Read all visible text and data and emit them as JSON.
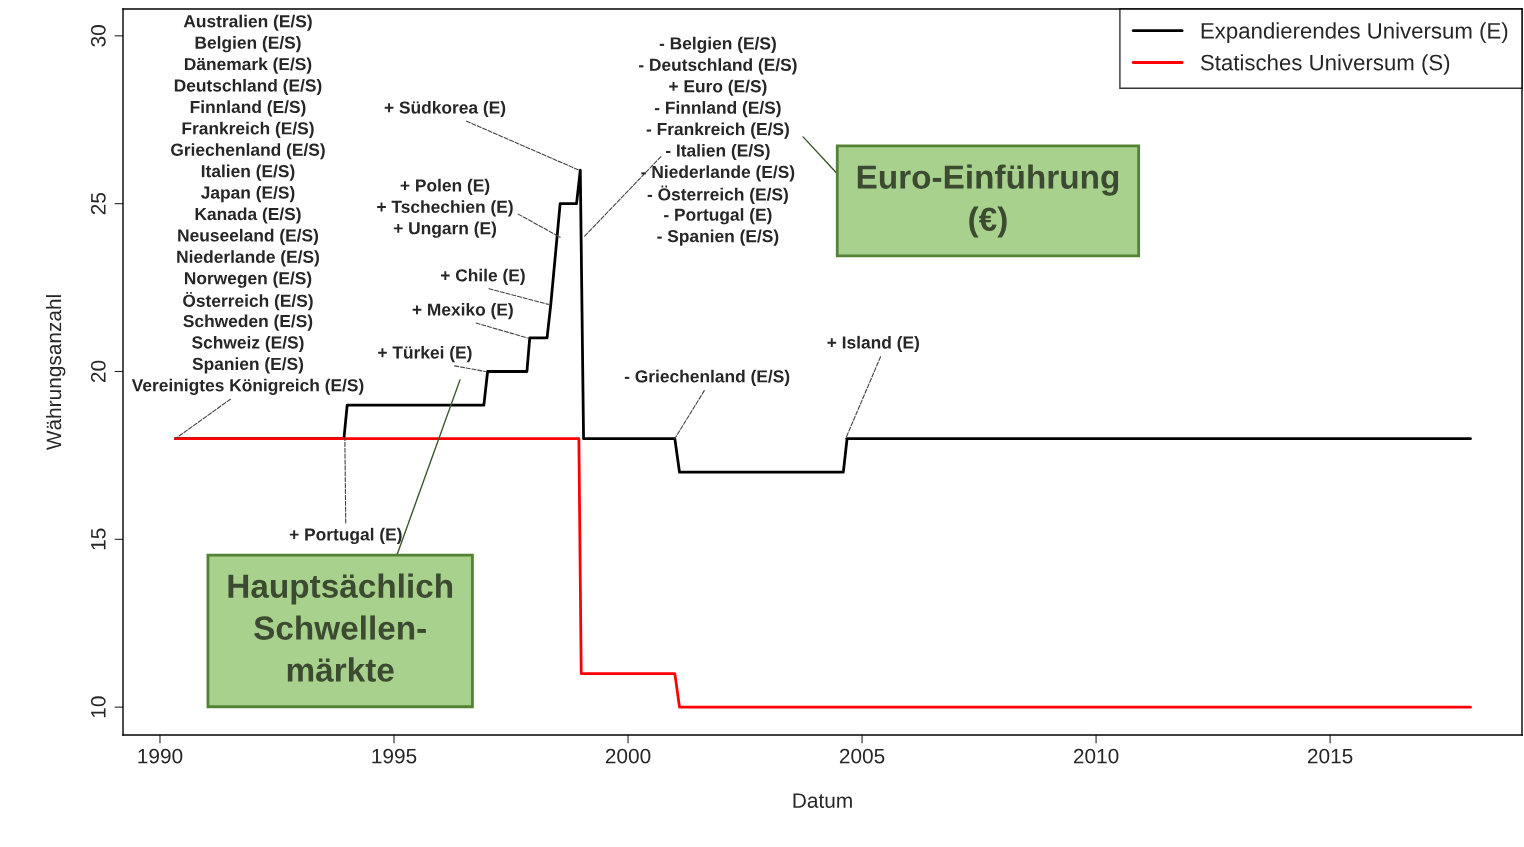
{
  "chart_data": {
    "type": "line",
    "xlabel": "Datum",
    "ylabel": "Währungsanzahl",
    "xlim": [
      1989.21,
      2019.1
    ],
    "ylim": [
      9.17,
      30.8
    ],
    "xticks": [
      1990,
      1995,
      2000,
      2005,
      2010,
      2015
    ],
    "yticks": [
      10,
      15,
      20,
      25,
      30
    ],
    "grid": false,
    "legend": "top right",
    "marker": "none",
    "line_style": "solid",
    "series": [
      {
        "name": "Expandierendes Universum (E)",
        "color": "#000000",
        "x": [
          1990.33,
          1993.93,
          1994.0,
          1996.92,
          1997.0,
          1997.84,
          1997.9,
          1998.27,
          1998.35,
          1998.55,
          1998.9,
          1998.98,
          1999.05,
          2001.0,
          2001.1,
          2004.6,
          2004.68,
          2018.0
        ],
        "values": [
          18,
          18,
          19,
          19,
          20,
          20,
          21,
          21,
          22,
          25,
          25,
          26,
          18,
          18,
          17,
          17,
          18,
          18
        ]
      },
      {
        "name": "Statisches Universum (S)",
        "color": "#ff0000",
        "x": [
          1990.33,
          1998.95,
          1999.0,
          2001.0,
          2001.1,
          2018.0
        ],
        "values": [
          18,
          18,
          11,
          11,
          10,
          10
        ]
      }
    ],
    "annotations": [
      "Australien (E/S)",
      "Belgien (E/S)",
      "Dänemark (E/S)",
      "Deutschland (E/S)",
      "Finnland (E/S)",
      "Frankreich (E/S)",
      "Griechenland (E/S)",
      "Italien (E/S)",
      "Japan (E/S)",
      "Kanada (E/S)",
      "Neuseeland (E/S)",
      "Niederlande (E/S)",
      "Norwegen (E/S)",
      "Österreich (E/S)",
      "Schweden (E/S)",
      "Schweiz (E/S)",
      "Spanien (E/S)",
      {
        "text": "Vereinigtes Königreich (E/S)",
        "x": 1990.33,
        "y": 18
      },
      {
        "text": "+ Portugal (E)",
        "x": 1993.95,
        "y": 18
      },
      {
        "text": "+ Türkei (E)",
        "x": 1996.95,
        "y": 20
      },
      {
        "text": "+ Mexiko (E)",
        "x": 1997.85,
        "y": 21
      },
      {
        "text": "+ Chile (E)",
        "x": 1998.3,
        "y": 22
      },
      "+ Polen (E)",
      {
        "text": "+ Tschechien (E)",
        "x": 1998.55,
        "y": 24
      },
      "+ Ungarn (E)",
      {
        "text": "+ Südkorea (E)",
        "x": 1998.95,
        "y": 26
      },
      "- Belgien (E/S)",
      "- Deutschland (E/S)",
      "+ Euro (E/S)",
      "- Finnland (E/S)",
      "- Frankreich (E/S)",
      {
        "text": "- Italien (E/S)",
        "x": 1999.05,
        "y": 24
      },
      "- Niederlande (E/S)",
      "- Österreich (E/S)",
      "- Portugal (E)",
      "- Spanien (E/S)",
      {
        "text": "- Griechenland (E/S)",
        "x": 2001.0,
        "y": 18
      },
      {
        "text": "+ Island (E)",
        "x": 2004.65,
        "y": 18
      },
      "Euro-Einführung\n(€)",
      "Hauptsächlich\nSchwellen-\nmärkte"
    ]
  }
}
